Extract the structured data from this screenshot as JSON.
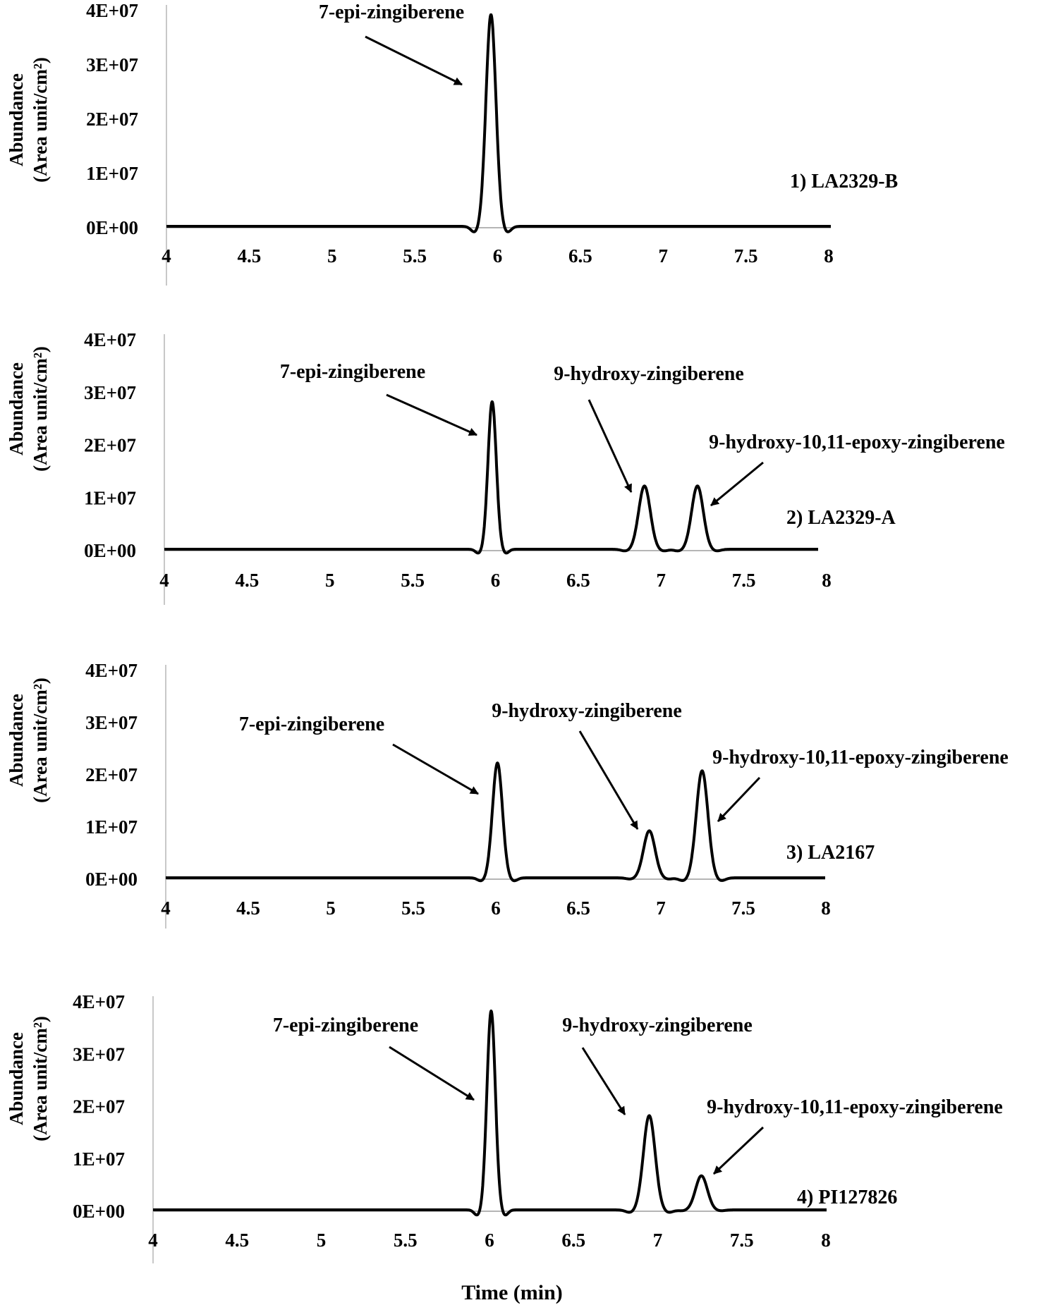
{
  "chart_data": [
    {
      "type": "line",
      "panel_label": "1) LA2329-B",
      "ylabel_line1": "Abundance",
      "ylabel_line2": "(Area unit/cm²)",
      "xlim": [
        4,
        8
      ],
      "ylim": [
        0,
        40000000
      ],
      "x_ticks": [
        "4",
        "4.5",
        "5",
        "5.5",
        "6",
        "6.5",
        "7",
        "7.5",
        "8"
      ],
      "y_ticks": [
        "0E+00",
        "1E+07",
        "2E+07",
        "3E+07",
        "4E+07"
      ],
      "peaks": [
        {
          "x": 5.96,
          "y": 39000000,
          "sigma": 0.03
        }
      ],
      "annotations": [
        {
          "text": "7-epi-zingiberene",
          "peak": 0
        }
      ]
    },
    {
      "type": "line",
      "panel_label": "2)  LA2329-A",
      "ylabel_line1": "Abundance",
      "ylabel_line2": "(Area unit/cm²)",
      "xlim": [
        4,
        8
      ],
      "ylim": [
        0,
        40000000
      ],
      "x_ticks": [
        "4",
        "4.5",
        "5",
        "5.5",
        "6",
        "6.5",
        "7",
        "7.5",
        "8"
      ],
      "y_ticks": [
        "0E+00",
        "1E+07",
        "2E+07",
        "3E+07",
        "4E+07"
      ],
      "peaks": [
        {
          "x": 5.98,
          "y": 28000000,
          "sigma": 0.025
        },
        {
          "x": 6.9,
          "y": 12000000,
          "sigma": 0.035
        },
        {
          "x": 7.22,
          "y": 12000000,
          "sigma": 0.035
        }
      ],
      "annotations": [
        {
          "text": "7-epi-zingiberene",
          "peak": 0
        },
        {
          "text": "9-hydroxy-zingiberene",
          "peak": 1
        },
        {
          "text": "9-hydroxy-10,11-epoxy-zingiberene",
          "peak": 2
        }
      ]
    },
    {
      "type": "line",
      "panel_label": "3) LA2167",
      "ylabel_line1": "Abundance",
      "ylabel_line2": "(Area unit/cm²)",
      "xlim": [
        4,
        8
      ],
      "ylim": [
        0,
        40000000
      ],
      "x_ticks": [
        "4",
        "4.5",
        "5",
        "5.5",
        "6",
        "6.5",
        "7",
        "7.5",
        "8"
      ],
      "y_ticks": [
        "0E+00",
        "1E+07",
        "2E+07",
        "3E+07",
        "4E+07"
      ],
      "peaks": [
        {
          "x": 6.01,
          "y": 22000000,
          "sigma": 0.03
        },
        {
          "x": 6.93,
          "y": 9000000,
          "sigma": 0.035
        },
        {
          "x": 7.25,
          "y": 20500000,
          "sigma": 0.035
        }
      ],
      "annotations": [
        {
          "text": "7-epi-zingiberene",
          "peak": 0
        },
        {
          "text": "9-hydroxy-zingiberene",
          "peak": 1
        },
        {
          "text": "9-hydroxy-10,11-epoxy-zingiberene",
          "peak": 2
        }
      ]
    },
    {
      "type": "line",
      "panel_label": "4) PI127826",
      "ylabel_line1": "Abundance",
      "ylabel_line2": "(Area unit/cm²)",
      "xlabel": "Time (min)",
      "xlim": [
        4,
        8
      ],
      "ylim": [
        0,
        40000000
      ],
      "x_ticks": [
        "4",
        "4.5",
        "5",
        "5.5",
        "6",
        "6.5",
        "7",
        "7.5",
        "8"
      ],
      "y_ticks": [
        "0E+00",
        "1E+07",
        "2E+07",
        "3E+07",
        "4E+07"
      ],
      "peaks": [
        {
          "x": 6.01,
          "y": 38000000,
          "sigma": 0.025
        },
        {
          "x": 6.95,
          "y": 18000000,
          "sigma": 0.035
        },
        {
          "x": 7.26,
          "y": 6500000,
          "sigma": 0.035
        }
      ],
      "annotations": [
        {
          "text": "7-epi-zingiberene",
          "peak": 0
        },
        {
          "text": "9-hydroxy-zingiberene",
          "peak": 1
        },
        {
          "text": "9-hydroxy-10,11-epoxy-zingiberene",
          "peak": 2
        }
      ]
    }
  ]
}
